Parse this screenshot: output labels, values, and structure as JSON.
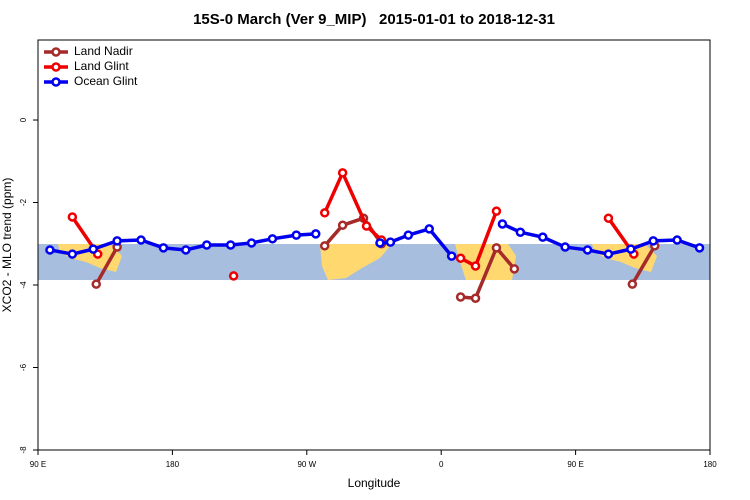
{
  "chart_data": {
    "type": "line",
    "title": "15S-0 March (Ver 9_MIP)   2015-01-01 to 2018-12-31",
    "x_label": "Longitude",
    "y_label": "XCO2 - MLO trend (ppm)",
    "xlim": [
      90,
      540
    ],
    "xticks": [
      {
        "value": 90,
        "label": "90 E"
      },
      {
        "value": 180,
        "label": "180"
      },
      {
        "value": 270,
        "label": "90 W"
      },
      {
        "value": 360,
        "label": "0"
      },
      {
        "value": 450,
        "label": "90 E"
      },
      {
        "value": 540,
        "label": "180"
      }
    ],
    "ylim": [
      -8,
      1.94
    ],
    "yticks": [
      0,
      -2,
      -4,
      -6,
      -8
    ],
    "legend": "top-left",
    "series": [
      {
        "name": "Land Nadir",
        "color": "#a52a2a",
        "x": [
          129,
          143,
          null,
          282,
          294,
          308,
          320,
          null,
          373,
          383,
          397,
          409,
          null,
          488,
          503
        ],
        "values": [
          -3.98,
          -3.08,
          null,
          -3.05,
          -2.55,
          -2.38,
          -3.0,
          null,
          -4.29,
          -4.32,
          -3.1,
          -3.61,
          null,
          -3.98,
          -3.05
        ]
      },
      {
        "name": "Land Glint",
        "color": "#ee0000",
        "x": [
          113,
          130,
          null,
          221,
          null,
          282,
          294,
          310,
          320,
          null,
          373,
          383,
          397,
          null,
          472,
          489
        ],
        "values": [
          -2.35,
          -3.25,
          null,
          -3.78,
          null,
          -2.25,
          -1.28,
          -2.57,
          -2.91,
          null,
          -3.35,
          -3.54,
          -2.21,
          null,
          -2.38,
          -3.25
        ]
      },
      {
        "name": "Ocean Glint",
        "color": "#0000ee",
        "x": [
          98,
          113,
          127,
          143,
          159,
          174,
          189,
          203,
          219,
          233,
          247,
          263,
          276,
          null,
          319,
          326,
          338,
          352,
          367,
          null,
          401,
          413,
          428,
          443,
          458,
          472,
          487,
          502,
          518,
          533
        ],
        "values": [
          -3.15,
          -3.25,
          -3.13,
          -2.93,
          -2.91,
          -3.1,
          -3.15,
          -3.03,
          -3.03,
          -2.98,
          -2.88,
          -2.79,
          -2.76,
          null,
          -2.98,
          -2.96,
          -2.79,
          -2.64,
          -3.3,
          null,
          -2.52,
          -2.72,
          -2.84,
          -3.08,
          -3.15,
          -3.25,
          -3.13,
          -2.93,
          -2.91,
          -3.1
        ]
      }
    ]
  }
}
